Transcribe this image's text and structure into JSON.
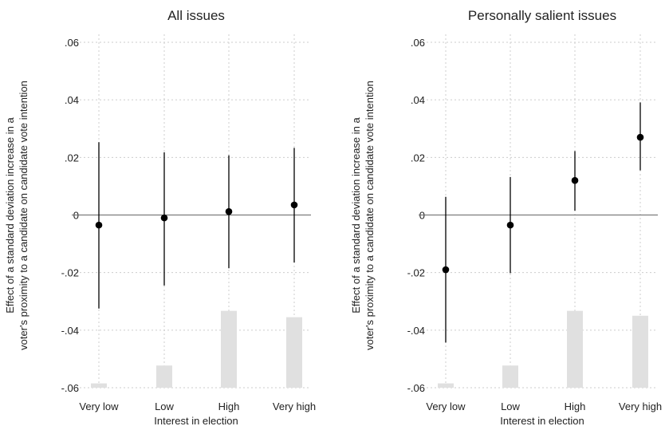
{
  "chart_data": [
    {
      "type": "scatter",
      "title": "All issues",
      "xlabel": "Interest in election",
      "ylabel_lines": [
        "Effect of a standard deviation increase in a",
        "voter's proximity to a candidate on candidate vote intention"
      ],
      "categories": [
        "Very low",
        "Low",
        "High",
        "Very high"
      ],
      "yticks": [
        ".06",
        ".04",
        ".02",
        "0",
        "-.02",
        "-.04",
        "-.06"
      ],
      "ylim": [
        -0.06,
        0.064
      ],
      "point_estimates": [
        -0.0035,
        -0.001,
        0.0012,
        0.0035
      ],
      "ci_lower": [
        -0.0325,
        -0.0245,
        -0.0185,
        -0.0165
      ],
      "ci_upper": [
        0.0253,
        0.0218,
        0.0207,
        0.0233
      ],
      "histogram_tops": [
        -0.0585,
        -0.0523,
        -0.0333,
        -0.0355
      ],
      "reference_line": 0,
      "grid": true,
      "colors": {
        "points": "#000000",
        "histogram": "#e0e0e0",
        "grid": "#cccccc",
        "reference": "#666666"
      }
    },
    {
      "type": "scatter",
      "title": "Personally salient issues",
      "xlabel": "Interest in election",
      "ylabel_lines": [
        "Effect of a standard deviation increase in a",
        "voter's proximity to a candidate on candidate vote intention"
      ],
      "categories": [
        "Very low",
        "Low",
        "High",
        "Very high"
      ],
      "yticks": [
        ".06",
        ".04",
        ".02",
        "0",
        "-.02",
        "-.04",
        "-.06"
      ],
      "ylim": [
        -0.06,
        0.064
      ],
      "point_estimates": [
        -0.019,
        -0.0035,
        0.012,
        0.027
      ],
      "ci_lower": [
        -0.0443,
        -0.0202,
        0.0015,
        0.0155
      ],
      "ci_upper": [
        0.0063,
        0.0132,
        0.0222,
        0.0391
      ],
      "histogram_tops": [
        -0.0585,
        -0.0523,
        -0.0333,
        -0.035
      ],
      "reference_line": 0,
      "grid": true,
      "colors": {
        "points": "#000000",
        "histogram": "#e0e0e0",
        "grid": "#cccccc",
        "reference": "#666666"
      }
    }
  ]
}
